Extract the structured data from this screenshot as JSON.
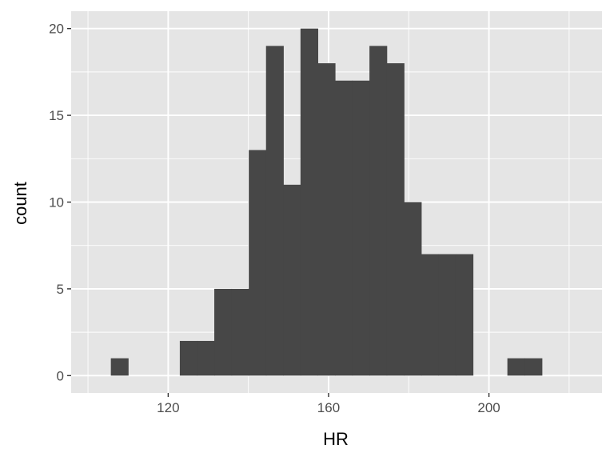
{
  "chart_data": {
    "type": "bar",
    "xlabel": "HR",
    "ylabel": "count",
    "xlim": [
      95.8,
      228.2
    ],
    "ylim": [
      -1,
      21
    ],
    "x_major_ticks": [
      120,
      160,
      200
    ],
    "x_minor_ticks": [
      100,
      140,
      180,
      220
    ],
    "y_major_ticks": [
      0,
      5,
      10,
      15,
      20
    ],
    "y_minor_ticks": [
      2.5,
      7.5,
      12.5,
      17.5
    ],
    "grid": true,
    "bin_width": 4.3,
    "bins": [
      {
        "start": 105.7,
        "count": 1
      },
      {
        "start": 110.0,
        "count": 0
      },
      {
        "start": 114.3,
        "count": 0
      },
      {
        "start": 118.6,
        "count": 0
      },
      {
        "start": 122.9,
        "count": 2
      },
      {
        "start": 127.2,
        "count": 2
      },
      {
        "start": 131.5,
        "count": 5
      },
      {
        "start": 135.8,
        "count": 5
      },
      {
        "start": 140.1,
        "count": 13
      },
      {
        "start": 144.4,
        "count": 19
      },
      {
        "start": 148.7,
        "count": 11
      },
      {
        "start": 153.0,
        "count": 20
      },
      {
        "start": 157.3,
        "count": 18
      },
      {
        "start": 161.6,
        "count": 17
      },
      {
        "start": 165.9,
        "count": 17
      },
      {
        "start": 170.2,
        "count": 19
      },
      {
        "start": 174.5,
        "count": 18
      },
      {
        "start": 178.8,
        "count": 10
      },
      {
        "start": 183.1,
        "count": 7
      },
      {
        "start": 187.4,
        "count": 7
      },
      {
        "start": 191.7,
        "count": 7
      },
      {
        "start": 196.0,
        "count": 0
      },
      {
        "start": 200.3,
        "count": 0
      },
      {
        "start": 204.6,
        "count": 1
      },
      {
        "start": 208.9,
        "count": 1
      }
    ],
    "colors": {
      "panel": "#e5e5e5",
      "grid": "#ffffff",
      "bar": "#474747",
      "tick": "#333333"
    }
  }
}
